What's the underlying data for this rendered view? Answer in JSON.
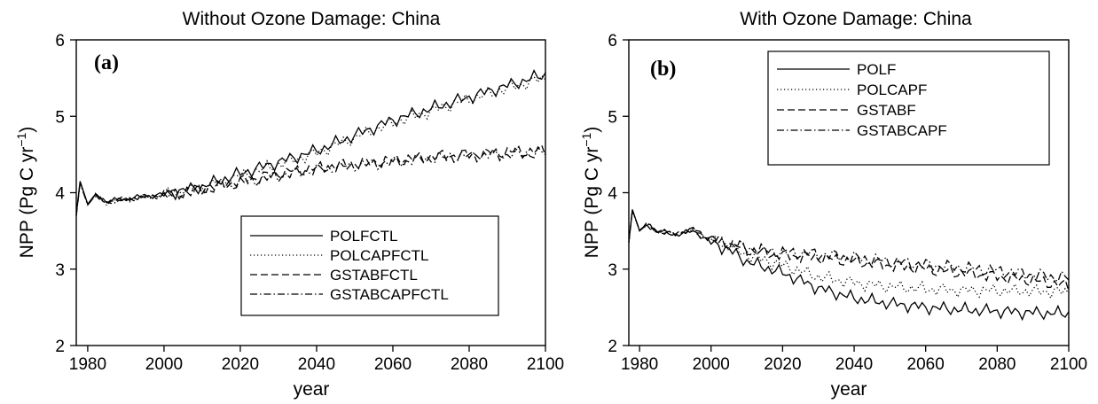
{
  "chart_data": [
    {
      "type": "line",
      "title": "Without Ozone Damage: China",
      "panel_label": "(a)",
      "xlabel": "year",
      "ylabel_main": "NPP (Pg C yr",
      "ylabel_sup": "−1",
      "ylabel_close": ")",
      "xlim": [
        1977,
        2100
      ],
      "ylim": [
        2,
        6
      ],
      "xticks": [
        1980,
        2000,
        2020,
        2040,
        2060,
        2080,
        2100
      ],
      "yticks": [
        2,
        3,
        4,
        5,
        6
      ],
      "legend_position": "lower-right",
      "series": [
        {
          "name": "POLFCTL",
          "style": "solid",
          "x": [
            1977,
            1978,
            1980,
            1982,
            1985,
            1990,
            1995,
            2000,
            2010,
            2020,
            2030,
            2040,
            2050,
            2060,
            2070,
            2080,
            2090,
            2100
          ],
          "y": [
            3.72,
            4.15,
            3.85,
            3.98,
            3.88,
            3.92,
            3.95,
            3.98,
            4.08,
            4.25,
            4.4,
            4.55,
            4.75,
            4.95,
            5.1,
            5.25,
            5.4,
            5.55
          ]
        },
        {
          "name": "POLCAPFCTL",
          "style": "dotted",
          "x": [
            1977,
            1978,
            1980,
            1982,
            1985,
            1990,
            1995,
            2000,
            2010,
            2020,
            2030,
            2040,
            2050,
            2060,
            2070,
            2080,
            2090,
            2100
          ],
          "y": [
            3.7,
            4.13,
            3.84,
            3.96,
            3.87,
            3.91,
            3.94,
            3.97,
            4.06,
            4.22,
            4.37,
            4.52,
            4.72,
            4.92,
            5.07,
            5.22,
            5.37,
            5.5
          ]
        },
        {
          "name": "GSTABFCTL",
          "style": "dashed",
          "x": [
            1977,
            1978,
            1980,
            1982,
            1985,
            1990,
            1995,
            2000,
            2010,
            2020,
            2030,
            2040,
            2050,
            2060,
            2070,
            2080,
            2090,
            2100
          ],
          "y": [
            3.71,
            4.14,
            3.85,
            3.97,
            3.88,
            3.92,
            3.95,
            3.97,
            4.05,
            4.15,
            4.25,
            4.32,
            4.38,
            4.42,
            4.47,
            4.5,
            4.53,
            4.55
          ]
        },
        {
          "name": "GSTABCAPFCTL",
          "style": "dashdot",
          "x": [
            1977,
            1978,
            1980,
            1982,
            1985,
            1990,
            1995,
            2000,
            2010,
            2020,
            2030,
            2040,
            2050,
            2060,
            2070,
            2080,
            2090,
            2100
          ],
          "y": [
            3.7,
            4.12,
            3.84,
            3.96,
            3.87,
            3.91,
            3.94,
            3.96,
            4.04,
            4.13,
            4.22,
            4.3,
            4.36,
            4.4,
            4.45,
            4.48,
            4.5,
            4.52
          ]
        }
      ]
    },
    {
      "type": "line",
      "title": "With Ozone Damage: China",
      "panel_label": "(b)",
      "xlabel": "year",
      "ylabel_main": "NPP (Pg C yr",
      "ylabel_sup": "−1",
      "ylabel_close": ")",
      "xlim": [
        1977,
        2100
      ],
      "ylim": [
        2,
        6
      ],
      "xticks": [
        1980,
        2000,
        2020,
        2040,
        2060,
        2080,
        2100
      ],
      "yticks": [
        2,
        3,
        4,
        5,
        6
      ],
      "legend_position": "top-right",
      "series": [
        {
          "name": "POLF",
          "style": "solid",
          "x": [
            1977,
            1978,
            1980,
            1982,
            1985,
            1990,
            1995,
            2000,
            2005,
            2010,
            2020,
            2030,
            2040,
            2050,
            2060,
            2070,
            2080,
            2090,
            2100
          ],
          "y": [
            3.35,
            3.78,
            3.5,
            3.58,
            3.5,
            3.45,
            3.5,
            3.35,
            3.25,
            3.1,
            2.95,
            2.75,
            2.62,
            2.55,
            2.5,
            2.47,
            2.45,
            2.43,
            2.42
          ]
        },
        {
          "name": "POLCAPF",
          "style": "dotted",
          "x": [
            1977,
            1978,
            1980,
            1982,
            1985,
            1990,
            1995,
            2000,
            2005,
            2010,
            2020,
            2030,
            2040,
            2050,
            2060,
            2070,
            2080,
            2090,
            2100
          ],
          "y": [
            3.35,
            3.77,
            3.5,
            3.58,
            3.5,
            3.46,
            3.5,
            3.37,
            3.3,
            3.18,
            3.05,
            2.9,
            2.82,
            2.77,
            2.74,
            2.72,
            2.72,
            2.71,
            2.7
          ]
        },
        {
          "name": "GSTABF",
          "style": "dashed",
          "x": [
            1977,
            1978,
            1980,
            1982,
            1985,
            1990,
            1995,
            2000,
            2005,
            2010,
            2020,
            2030,
            2040,
            2050,
            2060,
            2070,
            2080,
            2090,
            2100
          ],
          "y": [
            3.35,
            3.77,
            3.51,
            3.58,
            3.5,
            3.46,
            3.52,
            3.38,
            3.33,
            3.25,
            3.18,
            3.15,
            3.1,
            3.05,
            3.0,
            2.95,
            2.9,
            2.85,
            2.78
          ]
        },
        {
          "name": "GSTABCAPF",
          "style": "dashdot",
          "x": [
            1977,
            1978,
            1980,
            1982,
            1985,
            1990,
            1995,
            2000,
            2005,
            2010,
            2020,
            2030,
            2040,
            2050,
            2060,
            2070,
            2080,
            2090,
            2100
          ],
          "y": [
            3.35,
            3.76,
            3.51,
            3.58,
            3.5,
            3.46,
            3.52,
            3.39,
            3.34,
            3.27,
            3.22,
            3.2,
            3.15,
            3.1,
            3.06,
            3.02,
            2.98,
            2.93,
            2.88
          ]
        }
      ]
    }
  ]
}
